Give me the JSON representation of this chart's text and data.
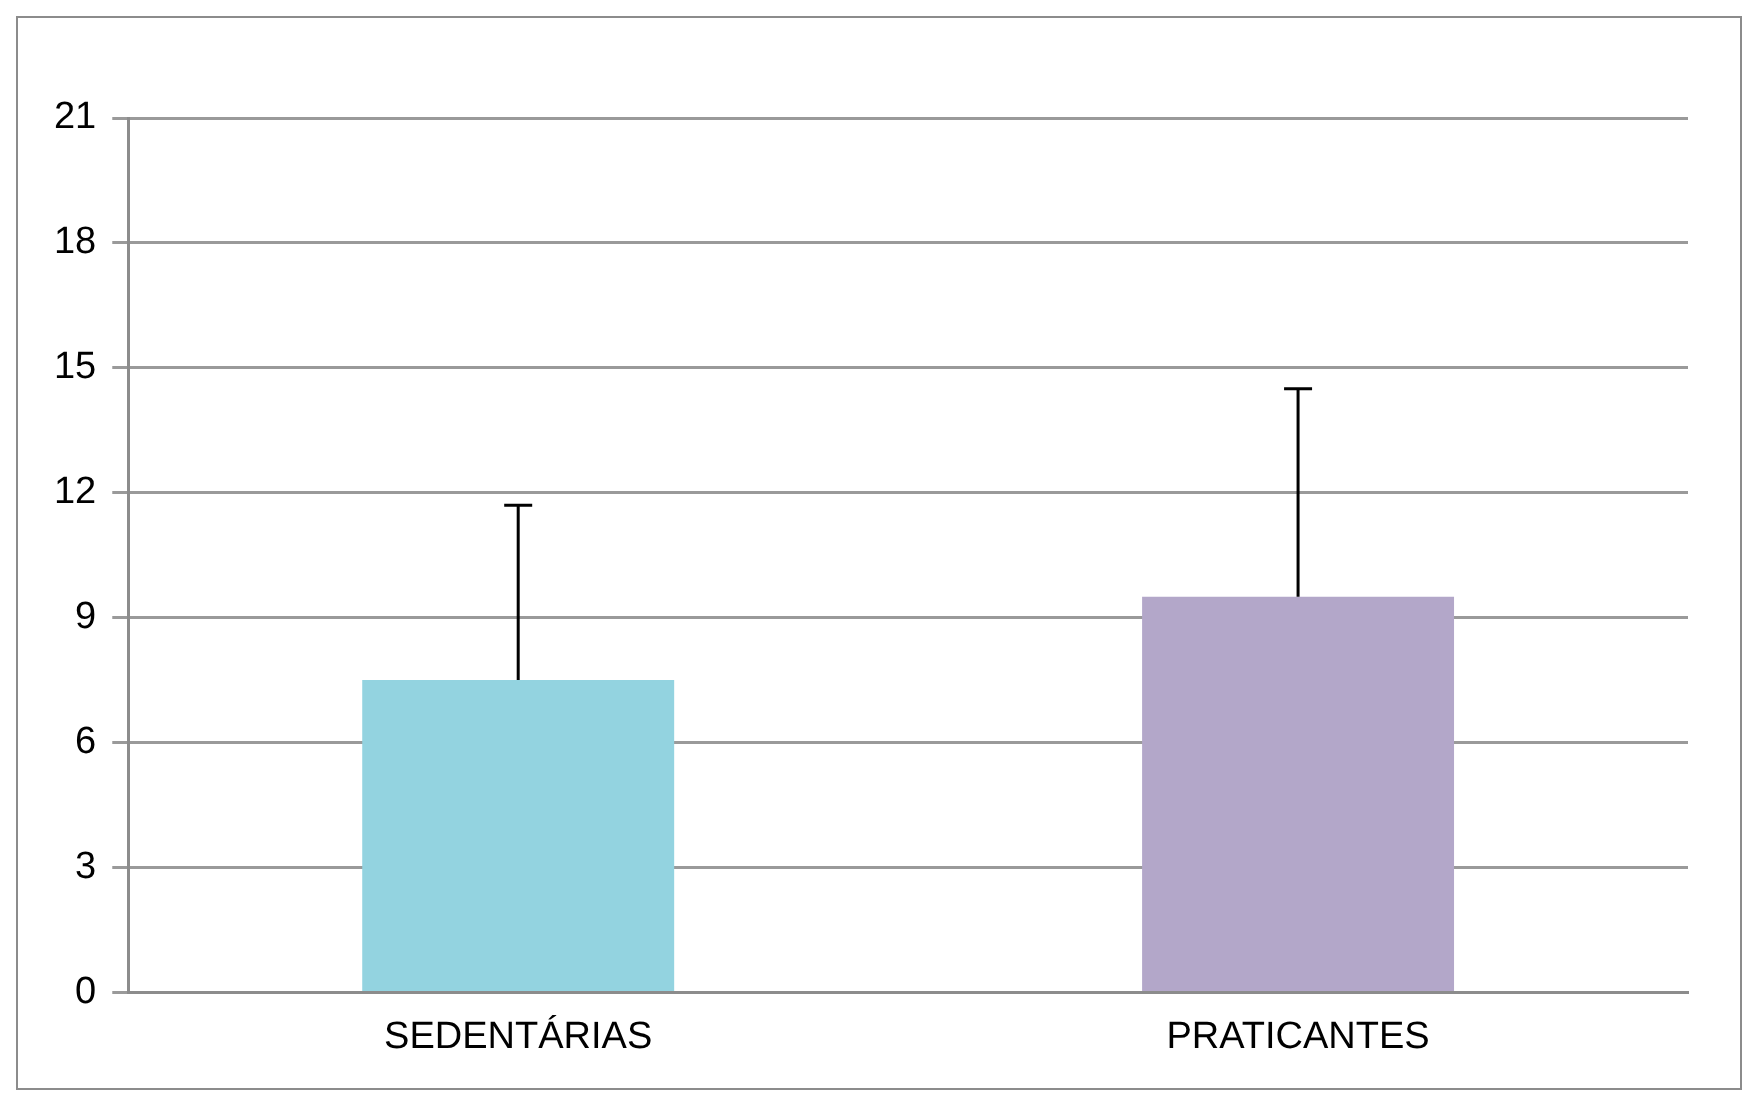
{
  "chart_data": {
    "type": "bar",
    "categories": [
      "SEDENTÁRIAS",
      "PRATICANTES"
    ],
    "values": [
      7.5,
      9.5
    ],
    "colors": [
      "#93d3e0",
      "#b3a7c9"
    ],
    "errors": [
      [
        7.5,
        11.7
      ],
      [
        9.5,
        14.5
      ]
    ],
    "ylim": [
      0,
      21
    ],
    "yticks": [
      0,
      3,
      6,
      9,
      12,
      15,
      18,
      21
    ],
    "grid": "y",
    "legend": false
  }
}
